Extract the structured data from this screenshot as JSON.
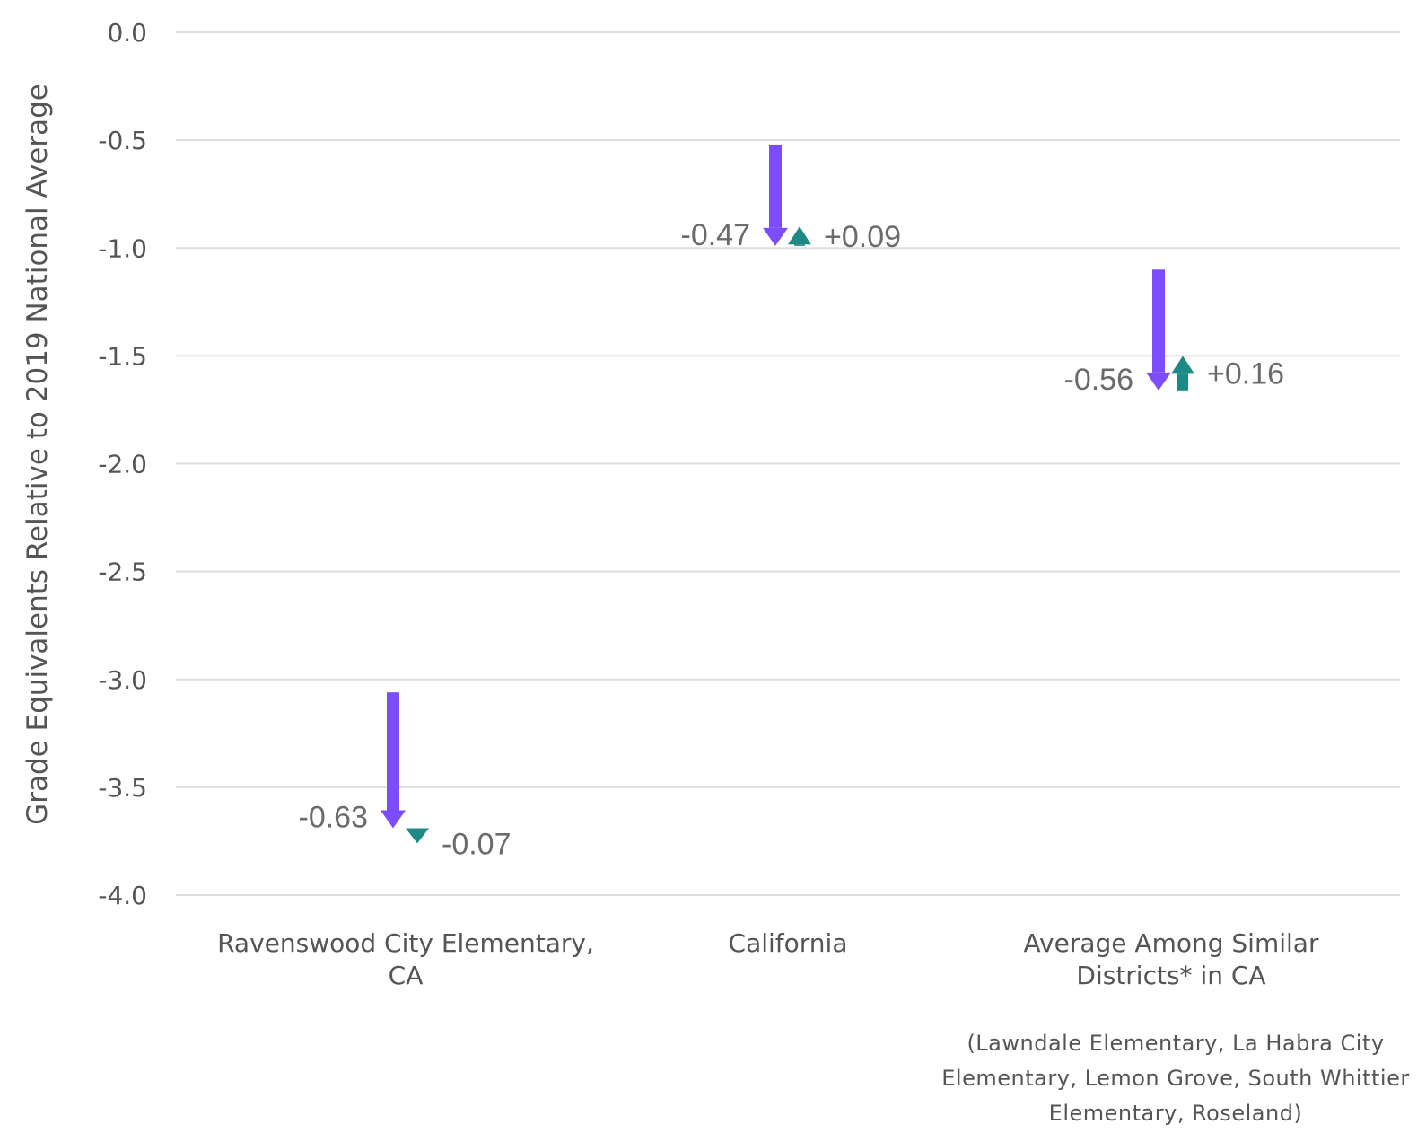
{
  "chart_data": {
    "type": "arrow",
    "ylabel": "Grade Equivalents Relative to 2019 National Average",
    "ylim": [
      -4.0,
      0.0
    ],
    "yticks": [
      "0.0",
      "-0.5",
      "-1.0",
      "-1.5",
      "-2.0",
      "-2.5",
      "-3.0",
      "-3.5",
      "-4.0"
    ],
    "grid": true,
    "categories": [
      {
        "label_lines": [
          "Ravenswood City Elementary,",
          "CA"
        ],
        "start": -3.06,
        "decline": {
          "end": -3.69,
          "change_label": "-0.63"
        },
        "recovery": {
          "end": -3.76,
          "change_label": "-0.07"
        }
      },
      {
        "label_lines": [
          "California"
        ],
        "start": -0.52,
        "decline": {
          "end": -0.99,
          "change_label": "-0.47"
        },
        "recovery": {
          "end": -0.9,
          "change_label": "+0.09"
        }
      },
      {
        "label_lines": [
          "Average Among Similar",
          "Districts* in CA"
        ],
        "start": -1.1,
        "decline": {
          "end": -1.66,
          "change_label": "-0.56"
        },
        "recovery": {
          "end": -1.5,
          "change_label": "+0.16"
        }
      }
    ],
    "note_lines": [
      "(Lawndale Elementary, La Habra City",
      "Elementary, Lemon Grove, South Whittier",
      "Elementary, Roseland)"
    ],
    "colors": {
      "decline": "#7b4dff",
      "recovery": "#1f8a85",
      "grid": "#dddddd",
      "text": "#555555"
    }
  }
}
